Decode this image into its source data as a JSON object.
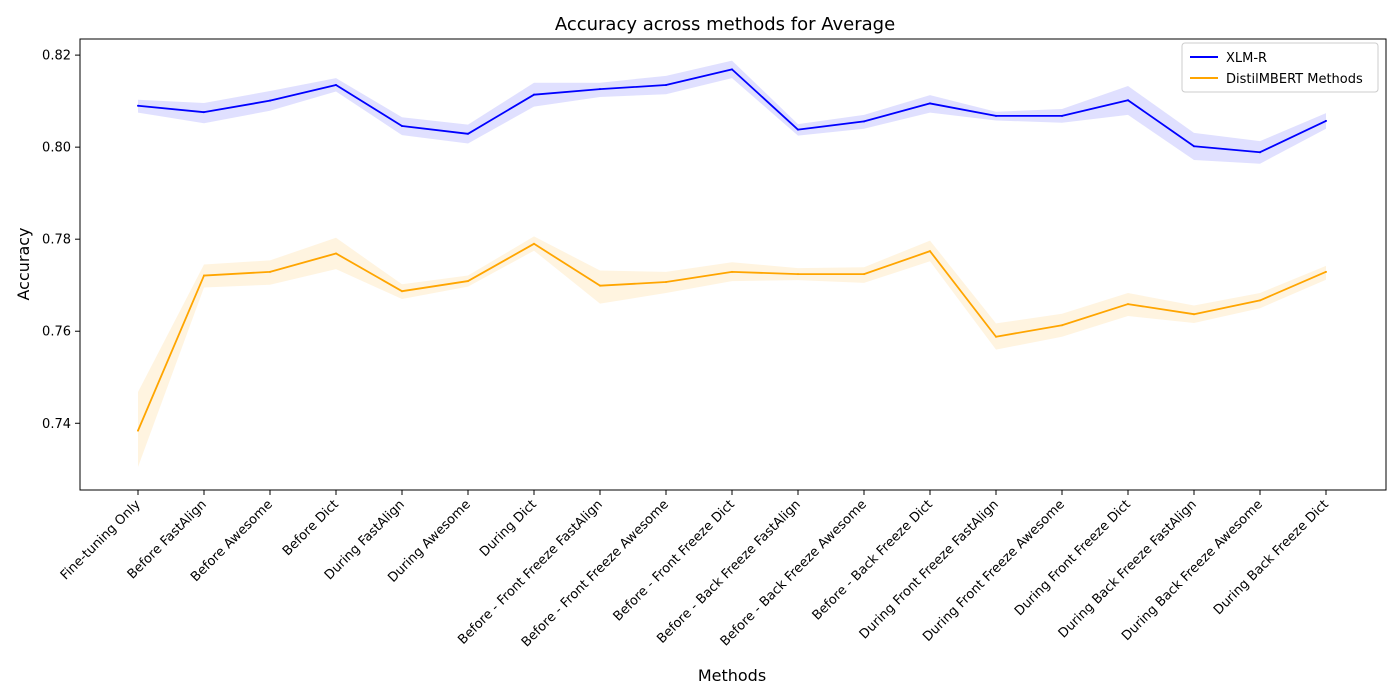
{
  "chart_data": {
    "type": "line",
    "title": "Accuracy across methods for Average",
    "xlabel": "Methods",
    "ylabel": "Accuracy",
    "ylim": [
      0.7255,
      0.8235
    ],
    "yticks": [
      0.74,
      0.76,
      0.78,
      0.8,
      0.82
    ],
    "grid": false,
    "legend_position": "top-right",
    "categories": [
      "Fine-tuning Only",
      "Before FastAlign",
      "Before Awesome",
      "Before Dict",
      "During FastAlign",
      "During Awesome",
      "During Dict",
      "Before - Front Freeze FastAlign",
      "Before - Front Freeze Awesome",
      "Before - Front Freeze Dict",
      "Before - Back Freeze FastAlign",
      "Before - Back Freeze Awesome",
      "Before - Back Freeze Dict",
      "During Front Freeze FastAlign",
      "During Front Freeze Awesome",
      "During Front Freeze Dict",
      "During Back Freeze FastAlign",
      "During Back Freeze Awesome",
      "During Back Freeze Dict"
    ],
    "series": [
      {
        "name": "XLM-R",
        "color": "#0000ff",
        "band_color": "#0000ff",
        "values": [
          0.809,
          0.8076,
          0.8101,
          0.8135,
          0.8046,
          0.8029,
          0.8114,
          0.8126,
          0.8135,
          0.8169,
          0.8038,
          0.8056,
          0.8095,
          0.8068,
          0.8068,
          0.8102,
          0.8002,
          0.7989,
          0.8057
        ],
        "lower": [
          0.8075,
          0.8052,
          0.8079,
          0.8121,
          0.8026,
          0.8008,
          0.8088,
          0.8109,
          0.8115,
          0.815,
          0.8025,
          0.804,
          0.8075,
          0.8058,
          0.8053,
          0.807,
          0.7972,
          0.7964,
          0.804
        ],
        "upper": [
          0.8103,
          0.8096,
          0.8122,
          0.815,
          0.8065,
          0.8049,
          0.814,
          0.814,
          0.8155,
          0.8188,
          0.805,
          0.807,
          0.8113,
          0.8077,
          0.8083,
          0.8133,
          0.8031,
          0.8013,
          0.8074
        ]
      },
      {
        "name": "DistilMBERT Methods",
        "color": "#ffa500",
        "band_color": "#ffa500",
        "values": [
          0.7384,
          0.7721,
          0.7729,
          0.7769,
          0.7687,
          0.7709,
          0.779,
          0.7699,
          0.7707,
          0.7729,
          0.7724,
          0.7724,
          0.7774,
          0.7588,
          0.7613,
          0.7659,
          0.7637,
          0.7667,
          0.7729
        ],
        "lower": [
          0.7305,
          0.7695,
          0.7701,
          0.7735,
          0.767,
          0.7697,
          0.7775,
          0.766,
          0.7683,
          0.7709,
          0.7711,
          0.7705,
          0.7752,
          0.756,
          0.7588,
          0.7633,
          0.7618,
          0.765,
          0.7712
        ],
        "upper": [
          0.7468,
          0.7745,
          0.7754,
          0.7803,
          0.7702,
          0.7721,
          0.7806,
          0.7732,
          0.7729,
          0.775,
          0.7737,
          0.7739,
          0.7797,
          0.7617,
          0.7638,
          0.7683,
          0.7656,
          0.7683,
          0.7742
        ]
      }
    ]
  }
}
